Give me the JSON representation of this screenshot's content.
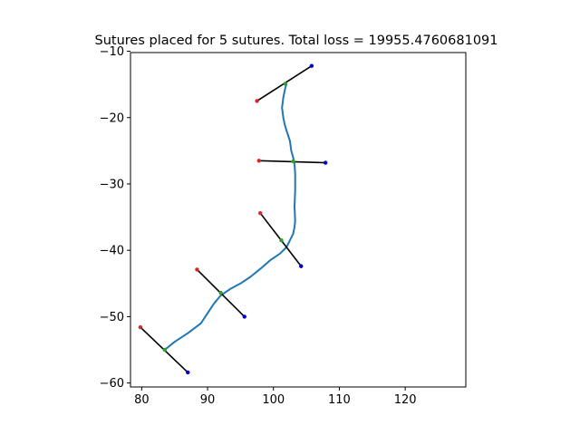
{
  "chart_data": {
    "type": "line",
    "title": "Sutures placed for 5 sutures. Total loss = 19955.4760681091",
    "xlabel": "",
    "ylabel": "",
    "xlim": [
      78.3,
      129.2
    ],
    "ylim": [
      -60.6,
      -10.2
    ],
    "xticks": [
      80,
      90,
      100,
      110,
      120
    ],
    "yticks": [
      -10,
      -20,
      -30,
      -40,
      -50,
      -60
    ],
    "grid": false,
    "colors": {
      "wound": "#1f77b4",
      "suture": "#000000",
      "insertion": "#d62728",
      "center": "#2ca02c",
      "extraction": "#0000cc"
    },
    "wound_line": [
      [
        83.5,
        -55.0
      ],
      [
        85.0,
        -53.8
      ],
      [
        87.0,
        -52.5
      ],
      [
        89.0,
        -51.0
      ],
      [
        90.0,
        -49.5
      ],
      [
        91.0,
        -48.0
      ],
      [
        92.0,
        -46.8
      ],
      [
        93.5,
        -45.8
      ],
      [
        95.0,
        -45.0
      ],
      [
        96.5,
        -44.0
      ],
      [
        98.0,
        -42.8
      ],
      [
        99.5,
        -41.5
      ],
      [
        101.0,
        -40.5
      ],
      [
        102.0,
        -39.5
      ],
      [
        102.5,
        -38.5
      ],
      [
        103.0,
        -37.5
      ],
      [
        103.2,
        -36.5
      ],
      [
        103.3,
        -35.5
      ],
      [
        103.2,
        -33.5
      ],
      [
        103.3,
        -31.0
      ],
      [
        103.3,
        -28.5
      ],
      [
        103.2,
        -27.0
      ],
      [
        103.0,
        -26.0
      ],
      [
        102.7,
        -25.0
      ],
      [
        102.5,
        -23.5
      ],
      [
        102.0,
        -22.0
      ],
      [
        101.7,
        -21.0
      ],
      [
        101.5,
        -20.0
      ],
      [
        101.3,
        -18.5
      ],
      [
        101.5,
        -17.0
      ],
      [
        101.8,
        -15.5
      ],
      [
        102.0,
        -14.9
      ]
    ],
    "sutures": [
      {
        "insertion": [
          97.5,
          -17.5
        ],
        "center": [
          101.8,
          -14.9
        ],
        "extraction": [
          105.8,
          -12.2
        ]
      },
      {
        "insertion": [
          97.8,
          -26.5
        ],
        "center": [
          103.0,
          -26.6
        ],
        "extraction": [
          107.9,
          -26.8
        ]
      },
      {
        "insertion": [
          98.0,
          -34.4
        ],
        "center": [
          101.2,
          -38.5
        ],
        "extraction": [
          104.2,
          -42.4
        ]
      },
      {
        "insertion": [
          88.4,
          -42.9
        ],
        "center": [
          92.0,
          -46.4
        ],
        "extraction": [
          95.6,
          -50.0
        ]
      },
      {
        "insertion": [
          79.8,
          -51.6
        ],
        "center": [
          83.5,
          -55.0
        ],
        "extraction": [
          87.0,
          -58.4
        ]
      }
    ]
  }
}
